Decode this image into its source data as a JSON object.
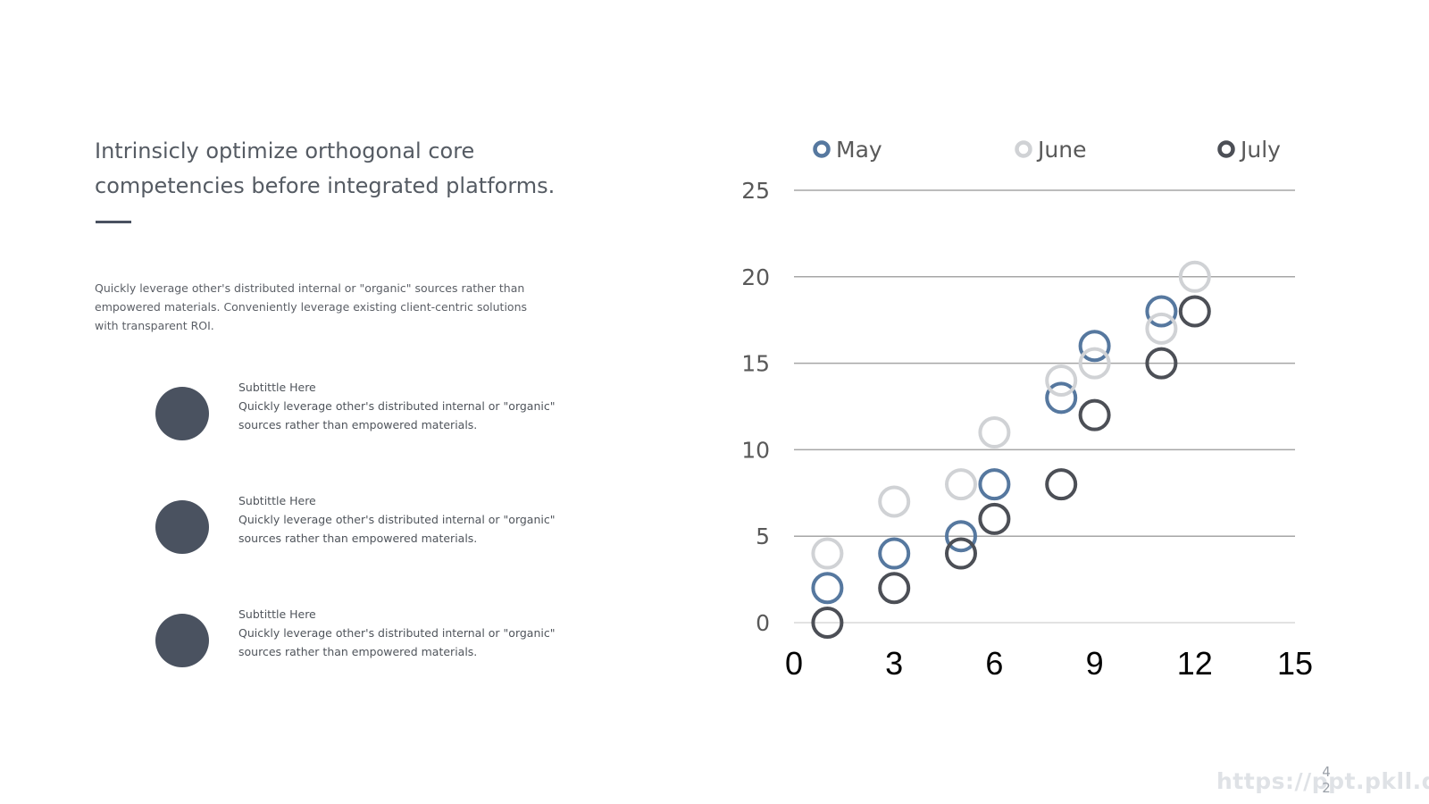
{
  "slide": {
    "title": "Intrinsicly optimize orthogonal core competencies before integrated platforms.",
    "intro": "Quickly leverage other's distributed internal or \"organic\" sources rather than empowered materials. Conveniently leverage existing client-centric solutions with transparent ROI.",
    "features": [
      {
        "subtitle": "Subtittle Here",
        "body": "Quickly leverage other's distributed internal or \"organic\" sources rather than empowered materials."
      },
      {
        "subtitle": "Subtittle Here",
        "body": "Quickly leverage other's distributed internal or \"organic\" sources rather than empowered materials."
      },
      {
        "subtitle": "Subtittle Here",
        "body": "Quickly leverage other's distributed internal or \"organic\" sources rather than empowered materials."
      }
    ],
    "watermark": "https://ppt.pkll.de",
    "page_number_top": "4",
    "page_number_bottom": "2",
    "accent_color": "#4a5260"
  },
  "chart_data": {
    "type": "scatter",
    "title": "",
    "xlabel": "",
    "ylabel": "",
    "xlim": [
      0,
      15
    ],
    "ylim": [
      0,
      25
    ],
    "xticks": [
      "0",
      "3",
      "6",
      "9",
      "12",
      "15"
    ],
    "yticks": [
      "0",
      "5",
      "10",
      "15",
      "20",
      "25"
    ],
    "grid": "horizontal",
    "legend_position": "top",
    "series": [
      {
        "name": "May",
        "color": "#56789f",
        "points": [
          [
            1,
            2
          ],
          [
            3,
            4
          ],
          [
            5,
            5
          ],
          [
            6,
            8
          ],
          [
            8,
            13
          ],
          [
            9,
            16
          ],
          [
            11,
            18
          ]
        ]
      },
      {
        "name": "June",
        "color": "#d0d2d5",
        "points": [
          [
            1,
            4
          ],
          [
            3,
            7
          ],
          [
            5,
            8
          ],
          [
            6,
            11
          ],
          [
            8,
            14
          ],
          [
            9,
            15
          ],
          [
            11,
            17
          ],
          [
            12,
            20
          ]
        ]
      },
      {
        "name": "July",
        "color": "#4c4f56",
        "points": [
          [
            1,
            0
          ],
          [
            3,
            2
          ],
          [
            5,
            4
          ],
          [
            6,
            6
          ],
          [
            8,
            8
          ],
          [
            9,
            12
          ],
          [
            11,
            15
          ],
          [
            12,
            18
          ]
        ]
      }
    ]
  }
}
